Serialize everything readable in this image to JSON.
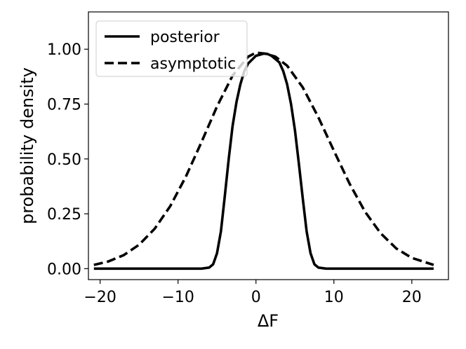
{
  "chart_data": {
    "type": "line",
    "xlabel": "ΔF",
    "ylabel": "probability density",
    "xlim": [
      -21.5,
      24.7
    ],
    "ylim": [
      -0.05,
      1.17
    ],
    "xticks": [
      -20,
      -10,
      0,
      10,
      20
    ],
    "xtick_labels": [
      "−20",
      "−10",
      "0",
      "10",
      "20"
    ],
    "yticks": [
      0.0,
      0.25,
      0.5,
      0.75,
      1.0
    ],
    "ytick_labels": [
      "0.00",
      "0.25",
      "0.50",
      "0.75",
      "1.00"
    ],
    "grid": false,
    "legend_position": "top-left",
    "series": [
      {
        "name": "posterior",
        "style": "solid",
        "color": "#000000",
        "x": [
          -20.8,
          -10,
          -7,
          -6,
          -5.5,
          -5,
          -4.5,
          -4,
          -3.5,
          -3,
          -2.5,
          -2,
          -1.5,
          -1,
          0,
          1,
          1.5,
          2,
          3,
          3.5,
          4,
          4.5,
          5,
          5.5,
          6,
          6.5,
          7,
          7.5,
          8,
          9,
          10,
          15,
          22.8
        ],
        "y": [
          0.0,
          0.0,
          0.0,
          0.005,
          0.02,
          0.07,
          0.17,
          0.33,
          0.5,
          0.65,
          0.76,
          0.84,
          0.9,
          0.935,
          0.97,
          0.98,
          0.978,
          0.97,
          0.94,
          0.9,
          0.84,
          0.75,
          0.63,
          0.48,
          0.32,
          0.17,
          0.07,
          0.02,
          0.005,
          0.0,
          0.0,
          0.0,
          0.0
        ]
      },
      {
        "name": "asymptotic",
        "style": "dashed",
        "color": "#000000",
        "x": [
          -20.8,
          -19,
          -17,
          -15,
          -13,
          -11,
          -9,
          -7,
          -5,
          -3,
          -1,
          0,
          1.2,
          2.5,
          4,
          6,
          8,
          10,
          12,
          14,
          16,
          18,
          20,
          22.8
        ],
        "y": [
          0.017,
          0.032,
          0.061,
          0.109,
          0.182,
          0.285,
          0.419,
          0.576,
          0.739,
          0.88,
          0.966,
          0.984,
          0.98,
          0.966,
          0.925,
          0.826,
          0.69,
          0.537,
          0.388,
          0.259,
          0.161,
          0.092,
          0.049,
          0.017
        ]
      }
    ]
  }
}
